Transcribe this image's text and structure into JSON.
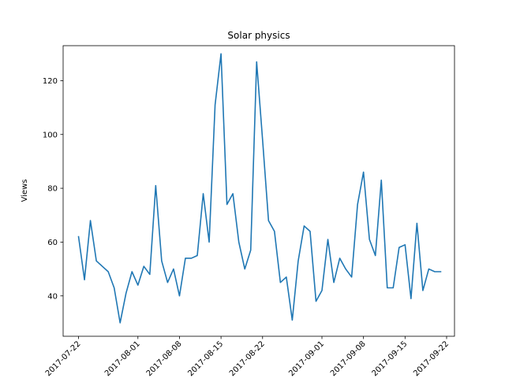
{
  "chart_data": {
    "type": "line",
    "title": "Solar physics",
    "xlabel": "",
    "ylabel": "Views",
    "x_tick_labels": [
      "2017-07-22",
      "2017-08-01",
      "2017-08-08",
      "2017-08-15",
      "2017-08-22",
      "2017-09-01",
      "2017-09-08",
      "2017-09-15",
      "2017-09-22"
    ],
    "y_ticks": [
      40,
      60,
      80,
      100,
      120
    ],
    "ylim": [
      25,
      133
    ],
    "xlim": [
      "2017-07-20",
      "2017-09-22"
    ],
    "grid": false,
    "legend": "none",
    "color": "#1f77b4",
    "series": [
      {
        "x": [
          "2017-07-22",
          "2017-07-23",
          "2017-07-24",
          "2017-07-25",
          "2017-07-26",
          "2017-07-27",
          "2017-07-28",
          "2017-07-29",
          "2017-07-30",
          "2017-07-31",
          "2017-08-01",
          "2017-08-02",
          "2017-08-03",
          "2017-08-04",
          "2017-08-05",
          "2017-08-06",
          "2017-08-07",
          "2017-08-08",
          "2017-08-09",
          "2017-08-10",
          "2017-08-11",
          "2017-08-12",
          "2017-08-13",
          "2017-08-14",
          "2017-08-15",
          "2017-08-16",
          "2017-08-17",
          "2017-08-18",
          "2017-08-19",
          "2017-08-20",
          "2017-08-21",
          "2017-08-22",
          "2017-08-23",
          "2017-08-24",
          "2017-08-25",
          "2017-08-26",
          "2017-08-27",
          "2017-08-28",
          "2017-08-29",
          "2017-08-30",
          "2017-08-31",
          "2017-09-01",
          "2017-09-02",
          "2017-09-03",
          "2017-09-04",
          "2017-09-05",
          "2017-09-06",
          "2017-09-07",
          "2017-09-08",
          "2017-09-09",
          "2017-09-10",
          "2017-09-11",
          "2017-09-12",
          "2017-09-13",
          "2017-09-14",
          "2017-09-15",
          "2017-09-16",
          "2017-09-17",
          "2017-09-18",
          "2017-09-19",
          "2017-09-20",
          "2017-09-21"
        ],
        "values": [
          62,
          46,
          68,
          53,
          51,
          49,
          43,
          30,
          41,
          49,
          44,
          51,
          48,
          81,
          53,
          45,
          50,
          40,
          54,
          54,
          55,
          78,
          60,
          111,
          130,
          74,
          78,
          60,
          50,
          57,
          127,
          98,
          68,
          64,
          45,
          47,
          31,
          53,
          66,
          64,
          38,
          42,
          61,
          45,
          54,
          50,
          47,
          74,
          86,
          61,
          55,
          83,
          43,
          43,
          58,
          59,
          39,
          67,
          42,
          50,
          49,
          49
        ]
      }
    ]
  }
}
